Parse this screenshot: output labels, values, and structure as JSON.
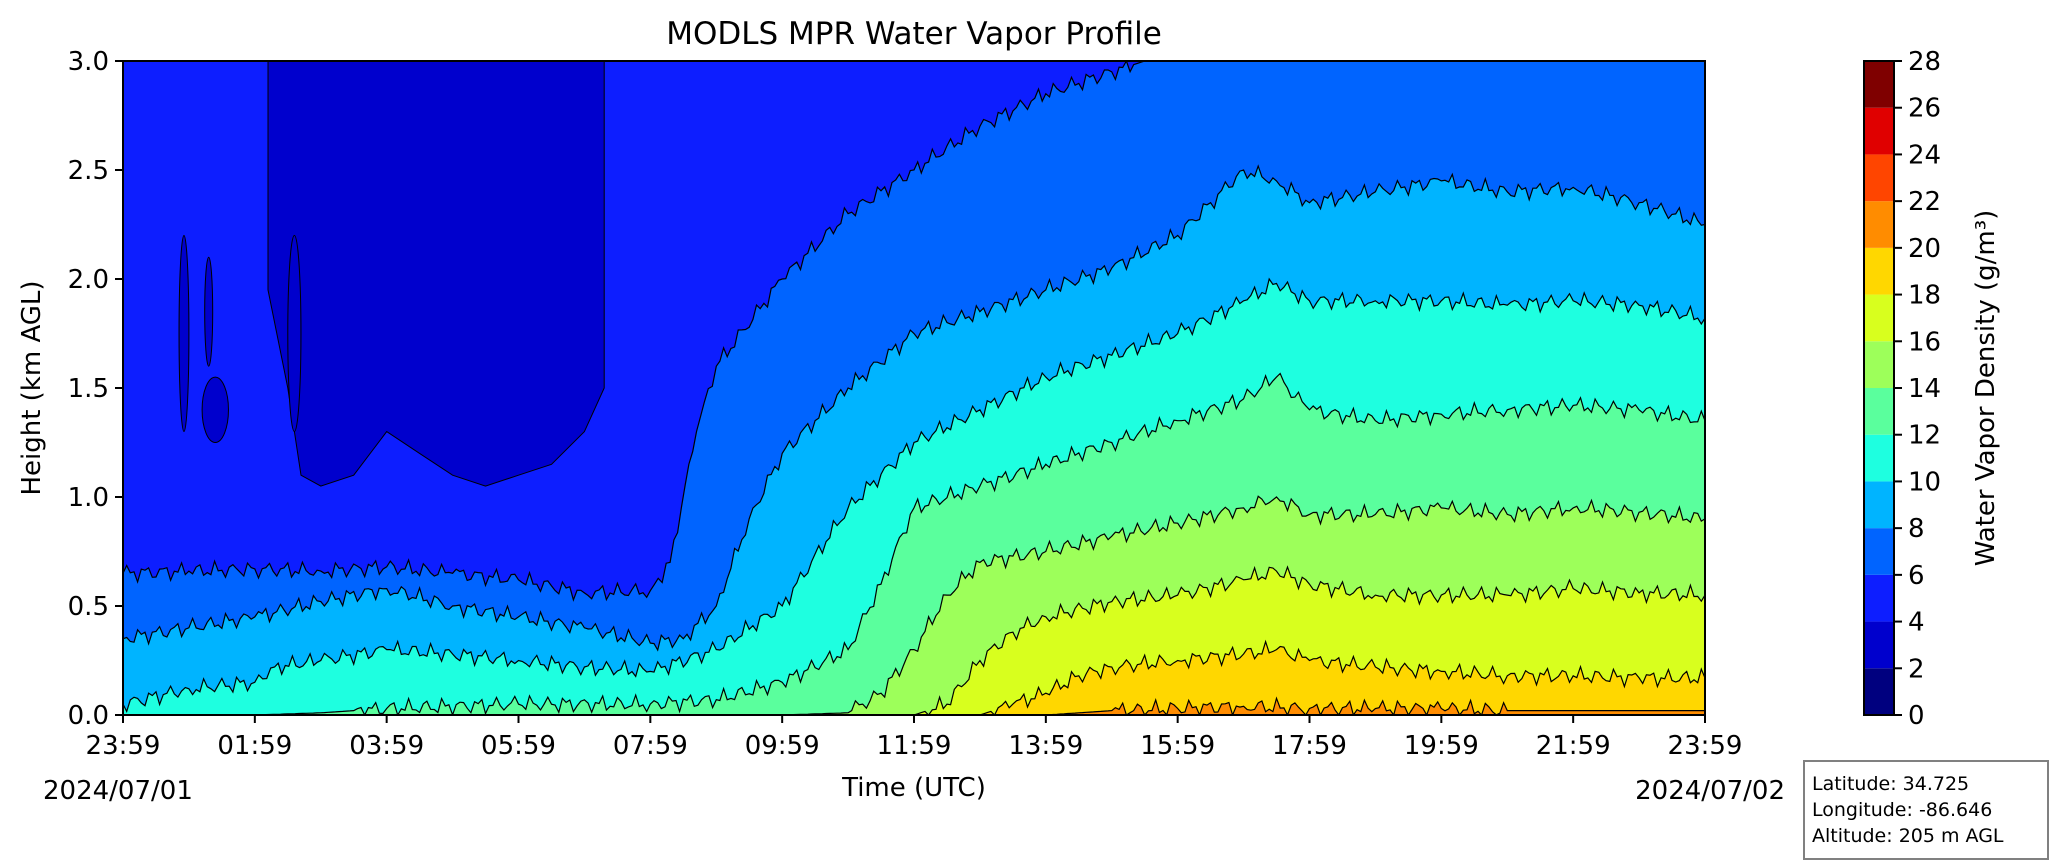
{
  "chart_data": {
    "type": "contour",
    "title": "MODLS MPR Water Vapor Profile",
    "xlabel": "Time (UTC)",
    "ylabel": "Height (km AGL)",
    "x_ticks": [
      "23:59",
      "01:59",
      "03:59",
      "05:59",
      "07:59",
      "09:59",
      "11:59",
      "13:59",
      "15:59",
      "17:59",
      "19:59",
      "21:59",
      "23:59"
    ],
    "x_tick_hours": [
      0,
      2,
      4,
      6,
      8,
      10,
      12,
      14,
      16,
      18,
      20,
      22,
      24
    ],
    "date_start": "2024/07/01",
    "date_end": "2024/07/02",
    "y_ticks": [
      "0.0",
      "0.5",
      "1.0",
      "1.5",
      "2.0",
      "2.5",
      "3.0"
    ],
    "ylim": [
      0,
      3.0
    ],
    "xlim_hours": [
      0,
      24
    ],
    "colorbar": {
      "label": "Water Vapor Density (g/m³)",
      "levels": [
        0,
        2,
        4,
        6,
        8,
        10,
        12,
        14,
        16,
        18,
        20,
        22,
        24,
        26,
        28
      ],
      "colors": [
        "#00007f",
        "#0000cd",
        "#0d1eff",
        "#0064ff",
        "#00b4ff",
        "#1effe0",
        "#5aff9d",
        "#9dff5a",
        "#d8ff1e",
        "#ffd700",
        "#ff8c00",
        "#ff4500",
        "#e00000",
        "#7f0000"
      ]
    },
    "contour_boundaries": [
      {
        "level": 2,
        "t": [
          0.9,
          1.0,
          1.2,
          1.4,
          1.6,
          2.0,
          2.2,
          3.0,
          4.0,
          5.0,
          6.0,
          7.0,
          7.8,
          8.0,
          8.4
        ],
        "h": [
          3.0,
          3.0,
          3.0,
          3.0,
          3.0,
          3.0,
          3.0,
          3.0,
          3.0,
          3.0,
          3.0,
          3.0,
          3.0,
          3.0,
          3.0
        ]
      },
      {
        "level": 6,
        "t": [
          0,
          1,
          2,
          3,
          4,
          5,
          6,
          7,
          8,
          8.3,
          8.7,
          9.0,
          10,
          11,
          12,
          13,
          14,
          15,
          15.5,
          16,
          24
        ],
        "h": [
          0.65,
          0.66,
          0.67,
          0.66,
          0.68,
          0.65,
          0.62,
          0.56,
          0.57,
          0.7,
          1.3,
          1.6,
          2.0,
          2.3,
          2.5,
          2.7,
          2.85,
          2.95,
          3.0,
          3.0,
          3.0
        ]
      },
      {
        "level": 8,
        "t": [
          0,
          1,
          2,
          3,
          4,
          5,
          6,
          7,
          8,
          8.5,
          9,
          9.5,
          10,
          11,
          12,
          13,
          14,
          15,
          16,
          16.5,
          17,
          17.5,
          18,
          19,
          20,
          21,
          22,
          23,
          24
        ],
        "h": [
          0.35,
          0.4,
          0.45,
          0.52,
          0.58,
          0.5,
          0.45,
          0.4,
          0.33,
          0.35,
          0.5,
          0.9,
          1.2,
          1.5,
          1.75,
          1.85,
          1.95,
          2.05,
          2.2,
          2.35,
          2.5,
          2.45,
          2.35,
          2.4,
          2.45,
          2.4,
          2.42,
          2.35,
          2.25
        ]
      },
      {
        "level": 10,
        "t": [
          0,
          1,
          2,
          2.3,
          3,
          4,
          5,
          6,
          7,
          8,
          9,
          10,
          11,
          12,
          13,
          14,
          15,
          16,
          17,
          17.5,
          18,
          19,
          20,
          21,
          22,
          23,
          24
        ],
        "h": [
          0.05,
          0.12,
          0.15,
          0.22,
          0.25,
          0.3,
          0.28,
          0.25,
          0.22,
          0.2,
          0.3,
          0.5,
          0.95,
          1.25,
          1.4,
          1.55,
          1.65,
          1.75,
          1.9,
          1.98,
          1.9,
          1.9,
          1.9,
          1.88,
          1.9,
          1.88,
          1.82
        ]
      },
      {
        "level": 12,
        "t": [
          0,
          2,
          3,
          4,
          6,
          8,
          9,
          10,
          11,
          11.5,
          12,
          13,
          14,
          15,
          16,
          17,
          17.5,
          18,
          19,
          20,
          21,
          22,
          23,
          24
        ],
        "h": [
          0.0,
          0.0,
          0.01,
          0.03,
          0.05,
          0.05,
          0.07,
          0.15,
          0.3,
          0.6,
          0.95,
          1.05,
          1.15,
          1.25,
          1.35,
          1.45,
          1.55,
          1.4,
          1.35,
          1.38,
          1.4,
          1.42,
          1.4,
          1.35
        ]
      },
      {
        "level": 14,
        "t": [
          0,
          9,
          10,
          11,
          11.5,
          12,
          12.5,
          13,
          14,
          15,
          16,
          17,
          17.5,
          18,
          19,
          20,
          21,
          22,
          23,
          24
        ],
        "h": [
          0.0,
          0.0,
          0.0,
          0.01,
          0.1,
          0.3,
          0.55,
          0.7,
          0.75,
          0.82,
          0.88,
          0.95,
          1.0,
          0.92,
          0.92,
          0.95,
          0.92,
          0.95,
          0.93,
          0.9
        ]
      },
      {
        "level": 16,
        "t": [
          0,
          12,
          12.5,
          13,
          13.5,
          14,
          15,
          16,
          17,
          17.5,
          18,
          19,
          20,
          21,
          22,
          23,
          24
        ],
        "h": [
          0.0,
          0.0,
          0.05,
          0.25,
          0.38,
          0.45,
          0.52,
          0.55,
          0.62,
          0.66,
          0.6,
          0.55,
          0.55,
          0.55,
          0.58,
          0.56,
          0.55
        ]
      },
      {
        "level": 18,
        "t": [
          0,
          13,
          13.5,
          14,
          14.5,
          15,
          16,
          17,
          17.5,
          18,
          19,
          20,
          21,
          22,
          23,
          24
        ],
        "h": [
          0.0,
          0.0,
          0.05,
          0.1,
          0.18,
          0.22,
          0.25,
          0.28,
          0.3,
          0.25,
          0.22,
          0.2,
          0.18,
          0.18,
          0.17,
          0.17
        ]
      },
      {
        "level": 20,
        "t": [
          0,
          14,
          14.5,
          15,
          16,
          17,
          18,
          19,
          20,
          21,
          22,
          23,
          24
        ],
        "h": [
          0.0,
          0.0,
          0.01,
          0.02,
          0.03,
          0.04,
          0.03,
          0.03,
          0.03,
          0.02,
          0.02,
          0.02,
          0.02
        ]
      }
    ],
    "dry_pockets_level4": [
      {
        "t": [
          0.85,
          1.0
        ],
        "h": [
          1.3,
          2.2
        ]
      },
      {
        "t": [
          1.25,
          1.35
        ],
        "h": [
          1.6,
          2.1
        ]
      },
      {
        "t": [
          1.2,
          1.6
        ],
        "h": [
          1.25,
          1.55
        ]
      },
      {
        "t": [
          2.5,
          2.7
        ],
        "h": [
          1.3,
          2.2
        ]
      }
    ],
    "station": {
      "latitude": "Latitude: 34.725",
      "longitude": "Longitude: -86.646",
      "altitude": "Altitude: 205 m AGL"
    }
  }
}
